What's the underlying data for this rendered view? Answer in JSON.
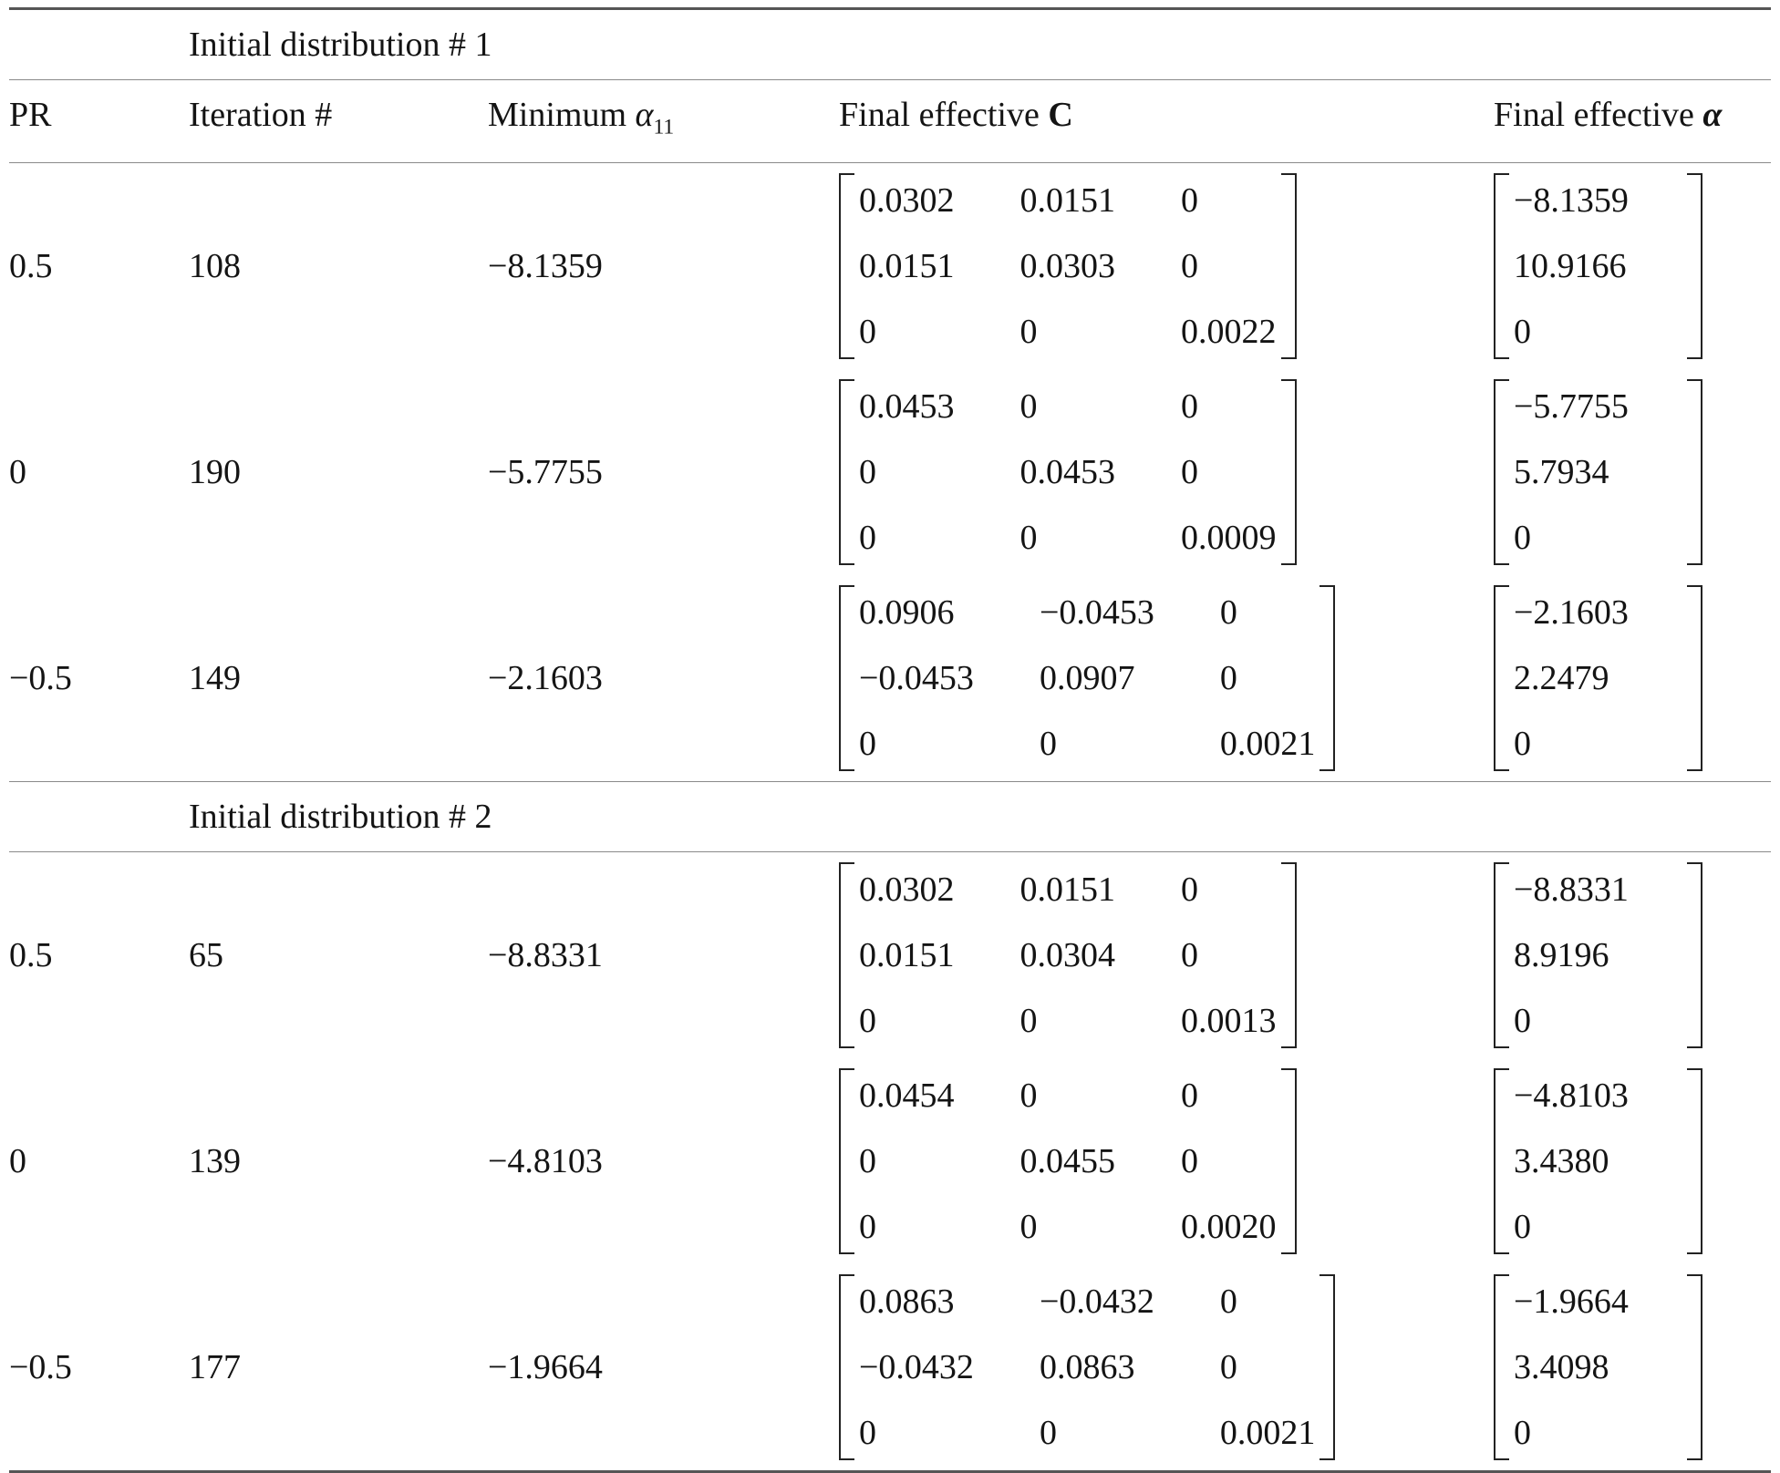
{
  "table": {
    "columns": {
      "pr": "PR",
      "iteration": "Iteration #",
      "minimum_prefix": "Minimum ",
      "minimum_symbol": "α",
      "minimum_subscript": "11",
      "final_c_prefix": "Final effective ",
      "final_c_symbol": "C",
      "final_alpha_prefix": "Final effective ",
      "final_alpha_symbol": "α"
    },
    "sections": [
      {
        "title": "Initial distribution # 1",
        "rows": [
          {
            "pr": "0.5",
            "iteration": "108",
            "minimum": "−8.1359",
            "C": [
              [
                "0.0302",
                "0.0151",
                "0"
              ],
              [
                "0.0151",
                "0.0303",
                "0"
              ],
              [
                "0",
                "0",
                "0.0022"
              ]
            ],
            "alpha": [
              "−8.1359",
              "10.9166",
              "0"
            ]
          },
          {
            "pr": "0",
            "iteration": "190",
            "minimum": "−5.7755",
            "C": [
              [
                "0.0453",
                "0",
                "0"
              ],
              [
                "0",
                "0.0453",
                "0"
              ],
              [
                "0",
                "0",
                "0.0009"
              ]
            ],
            "alpha": [
              "−5.7755",
              "5.7934",
              "0"
            ]
          },
          {
            "pr": "−0.5",
            "iteration": "149",
            "minimum": "−2.1603",
            "C": [
              [
                "0.0906",
                "−0.0453",
                "0"
              ],
              [
                "−0.0453",
                "0.0907",
                "0"
              ],
              [
                "0",
                "0",
                "0.0021"
              ]
            ],
            "alpha": [
              "−2.1603",
              "2.2479",
              "0"
            ]
          }
        ]
      },
      {
        "title": "Initial distribution # 2",
        "rows": [
          {
            "pr": "0.5",
            "iteration": "65",
            "minimum": "−8.8331",
            "C": [
              [
                "0.0302",
                "0.0151",
                "0"
              ],
              [
                "0.0151",
                "0.0304",
                "0"
              ],
              [
                "0",
                "0",
                "0.0013"
              ]
            ],
            "alpha": [
              "−8.8331",
              "8.9196",
              "0"
            ]
          },
          {
            "pr": "0",
            "iteration": "139",
            "minimum": "−4.8103",
            "C": [
              [
                "0.0454",
                "0",
                "0"
              ],
              [
                "0",
                "0.0455",
                "0"
              ],
              [
                "0",
                "0",
                "0.0020"
              ]
            ],
            "alpha": [
              "−4.8103",
              "3.4380",
              "0"
            ]
          },
          {
            "pr": "−0.5",
            "iteration": "177",
            "minimum": "−1.9664",
            "C": [
              [
                "0.0863",
                "−0.0432",
                "0"
              ],
              [
                "−0.0432",
                "0.0863",
                "0"
              ],
              [
                "0",
                "0",
                "0.0021"
              ]
            ],
            "alpha": [
              "−1.9664",
              "3.4098",
              "0"
            ]
          }
        ]
      }
    ]
  }
}
